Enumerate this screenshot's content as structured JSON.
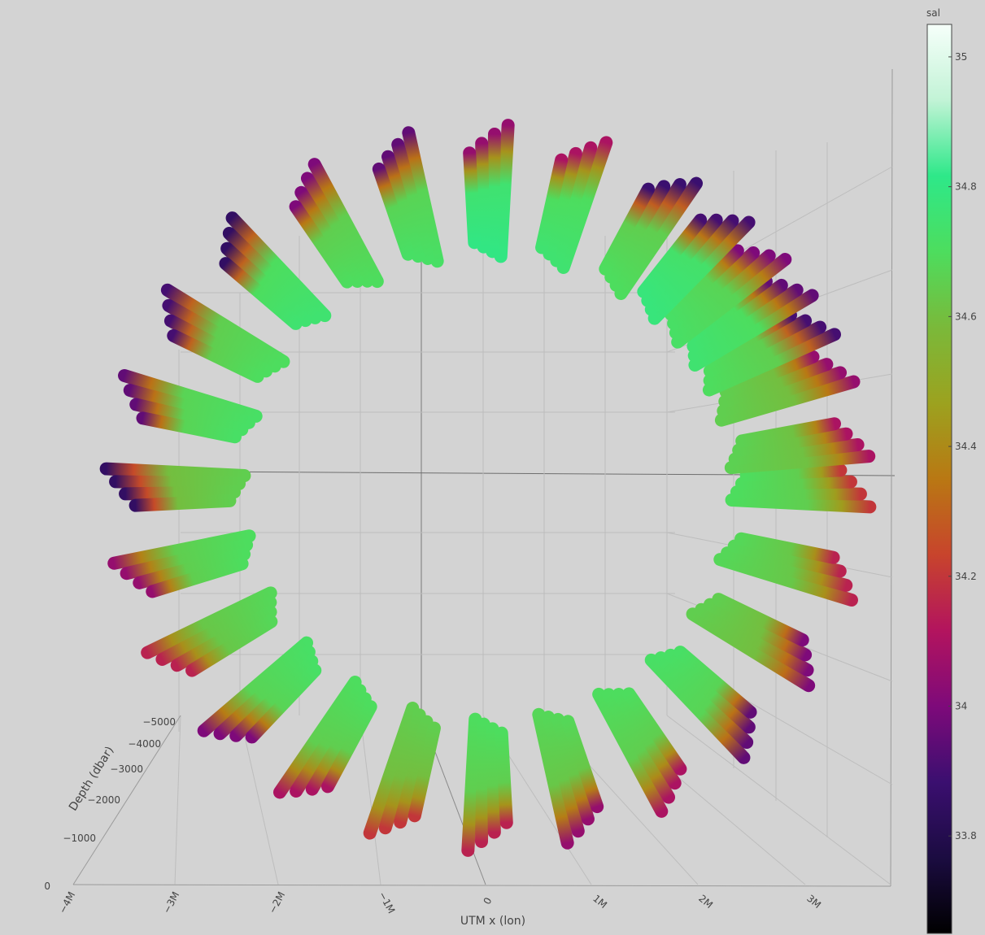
{
  "chart_data": {
    "type": "scatter3d",
    "xlabel": "UTM x (lon)",
    "zlabel": "Depth (dbar)",
    "x_ticks": [
      "−4M",
      "−3M",
      "−2M",
      "−1M",
      "0",
      "1M",
      "2M",
      "3M"
    ],
    "z_ticks": [
      "0",
      "−1000",
      "−2000",
      "−3000",
      "−4000",
      "−5000"
    ],
    "colorbar": {
      "title": "sal",
      "ticks": [
        "35",
        "34.8",
        "34.6",
        "34.4",
        "34.2",
        "34",
        "33.8"
      ],
      "tick_values": [
        35,
        34.8,
        34.6,
        34.4,
        34.2,
        34,
        33.8
      ],
      "range": [
        33.65,
        35.05
      ],
      "colorscale": [
        "#000000",
        "#1b0c41",
        "#3b0f70",
        "#7e0a7a",
        "#b3145e",
        "#c8442c",
        "#b97813",
        "#9ca21f",
        "#7ab93a",
        "#4ddd5e",
        "#2ee889",
        "#c2f3d6",
        "#f6fffa"
      ]
    },
    "profiles": [
      {
        "angle": 20,
        "sal_top": 34.65,
        "sal_bottom": 34.05
      },
      {
        "angle": 28,
        "sal_top": 34.7,
        "sal_bottom": 33.9
      },
      {
        "angle": 35,
        "sal_top": 34.75,
        "sal_bottom": 33.95
      },
      {
        "angle": 42,
        "sal_top": 34.72,
        "sal_bottom": 34.0
      },
      {
        "angle": 50,
        "sal_top": 34.78,
        "sal_bottom": 33.9
      },
      {
        "angle": 60,
        "sal_top": 34.7,
        "sal_bottom": 33.88
      },
      {
        "angle": 75,
        "sal_top": 34.75,
        "sal_bottom": 34.1
      },
      {
        "angle": 90,
        "sal_top": 34.8,
        "sal_bottom": 34.05
      },
      {
        "angle": 105,
        "sal_top": 34.72,
        "sal_bottom": 33.95
      },
      {
        "angle": 120,
        "sal_top": 34.7,
        "sal_bottom": 34.0
      },
      {
        "angle": 135,
        "sal_top": 34.75,
        "sal_bottom": 33.85
      },
      {
        "angle": 150,
        "sal_top": 34.7,
        "sal_bottom": 33.9
      },
      {
        "angle": 165,
        "sal_top": 34.72,
        "sal_bottom": 33.95
      },
      {
        "angle": 180,
        "sal_top": 34.65,
        "sal_bottom": 33.85
      },
      {
        "angle": 195,
        "sal_top": 34.7,
        "sal_bottom": 34.05
      },
      {
        "angle": 210,
        "sal_top": 34.68,
        "sal_bottom": 34.15
      },
      {
        "angle": 225,
        "sal_top": 34.72,
        "sal_bottom": 34.0
      },
      {
        "angle": 240,
        "sal_top": 34.7,
        "sal_bottom": 34.1
      },
      {
        "angle": 255,
        "sal_top": 34.65,
        "sal_bottom": 34.2
      },
      {
        "angle": 270,
        "sal_top": 34.7,
        "sal_bottom": 34.15
      },
      {
        "angle": 285,
        "sal_top": 34.68,
        "sal_bottom": 34.05
      },
      {
        "angle": 300,
        "sal_top": 34.7,
        "sal_bottom": 34.1
      },
      {
        "angle": 315,
        "sal_top": 34.72,
        "sal_bottom": 33.95
      },
      {
        "angle": 330,
        "sal_top": 34.65,
        "sal_bottom": 34.0
      },
      {
        "angle": 345,
        "sal_top": 34.68,
        "sal_bottom": 34.15
      },
      {
        "angle": 0,
        "sal_top": 34.7,
        "sal_bottom": 34.2
      },
      {
        "angle": 8,
        "sal_top": 34.66,
        "sal_bottom": 34.1
      }
    ]
  }
}
